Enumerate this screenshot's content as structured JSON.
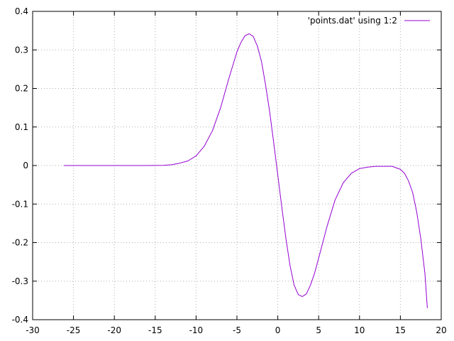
{
  "chart_data": {
    "type": "line",
    "title": "",
    "xlabel": "",
    "ylabel": "",
    "xlim": [
      -30,
      20
    ],
    "ylim": [
      -0.4,
      0.4
    ],
    "xticks": [
      -30,
      -25,
      -20,
      -15,
      -10,
      -5,
      0,
      5,
      10,
      15,
      20
    ],
    "yticks": [
      -0.4,
      -0.3,
      -0.2,
      -0.1,
      0,
      0.1,
      0.2,
      0.3,
      0.4
    ],
    "xtick_labels": [
      "-30",
      "-25",
      "-20",
      "-15",
      "-10",
      "-5",
      "0",
      "5",
      "10",
      "15",
      "20"
    ],
    "ytick_labels": [
      "-0.4",
      "-0.3",
      "-0.2",
      "-0.1",
      "0",
      "0.1",
      "0.2",
      "0.3",
      "0.4"
    ],
    "grid": true,
    "legend_position": "top-right",
    "series": [
      {
        "name": "'points.dat' using 1:2",
        "color": "#9400d3",
        "x": [
          -26.2,
          -24,
          -22,
          -20,
          -18,
          -16,
          -14,
          -13,
          -12,
          -11,
          -10,
          -9,
          -8,
          -7,
          -6,
          -5,
          -4.5,
          -4,
          -3.5,
          -3,
          -2.5,
          -2,
          -1.5,
          -1,
          -0.5,
          0,
          0.5,
          1,
          1.5,
          2,
          2.5,
          3,
          3.5,
          4,
          4.5,
          5,
          5.5,
          6,
          7,
          8,
          9,
          10,
          11,
          12,
          13,
          14,
          15,
          15.5,
          16,
          16.5,
          17,
          17.5,
          18,
          18.3
        ],
        "y": [
          0,
          0,
          0,
          0,
          0,
          0,
          0.0005,
          0.002,
          0.006,
          0.012,
          0.025,
          0.05,
          0.09,
          0.15,
          0.225,
          0.295,
          0.32,
          0.337,
          0.342,
          0.335,
          0.31,
          0.27,
          0.21,
          0.14,
          0.06,
          -0.025,
          -0.11,
          -0.19,
          -0.26,
          -0.31,
          -0.335,
          -0.34,
          -0.333,
          -0.31,
          -0.28,
          -0.24,
          -0.2,
          -0.16,
          -0.09,
          -0.045,
          -0.02,
          -0.008,
          -0.004,
          -0.002,
          -0.002,
          -0.002,
          -0.01,
          -0.02,
          -0.04,
          -0.07,
          -0.12,
          -0.19,
          -0.28,
          -0.37
        ]
      }
    ]
  }
}
